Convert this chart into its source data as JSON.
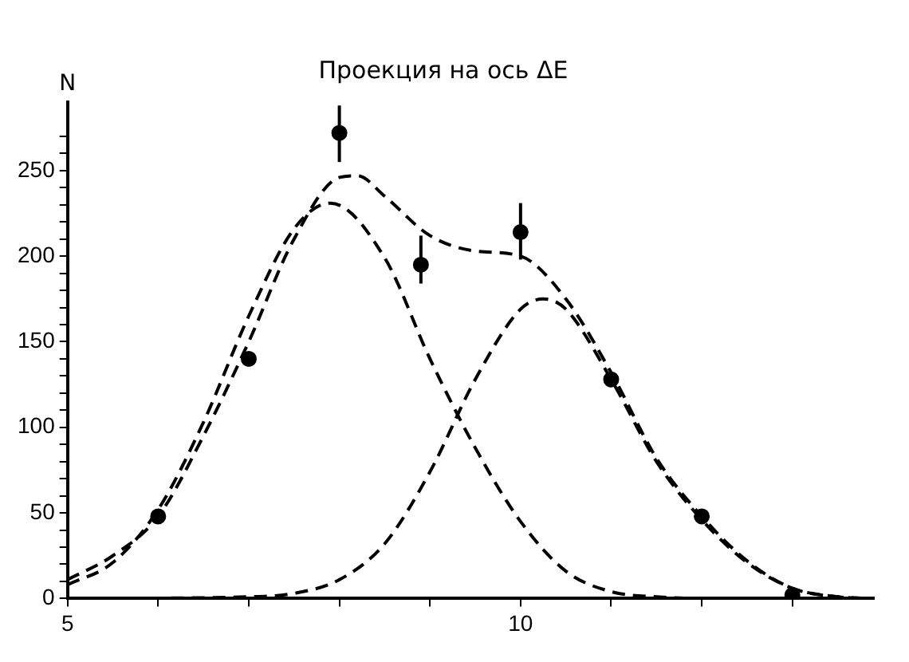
{
  "chart_data": {
    "type": "line",
    "title": "Проекция на ось ΔE",
    "ylabel": "N",
    "xlim": [
      5,
      13.9
    ],
    "ylim": [
      0,
      290
    ],
    "xticks": [
      5,
      {
        "value": 6,
        "label": null
      },
      {
        "value": 7,
        "label": null
      },
      {
        "value": 8,
        "label": null
      },
      {
        "value": 9,
        "label": null
      },
      10,
      {
        "value": 11,
        "label": null
      },
      {
        "value": 12,
        "label": null
      },
      {
        "value": 13,
        "label": null
      }
    ],
    "yticks": [
      0,
      {
        "value": 10,
        "label": null
      },
      {
        "value": 20,
        "label": null
      },
      {
        "value": 30,
        "label": null
      },
      {
        "value": 40,
        "label": null
      },
      50,
      {
        "value": 60,
        "label": null
      },
      {
        "value": 70,
        "label": null
      },
      {
        "value": 80,
        "label": null
      },
      {
        "value": 90,
        "label": null
      },
      100,
      {
        "value": 110,
        "label": null
      },
      {
        "value": 120,
        "label": null
      },
      {
        "value": 130,
        "label": null
      },
      {
        "value": 140,
        "label": null
      },
      150,
      {
        "value": 160,
        "label": null
      },
      {
        "value": 170,
        "label": null
      },
      {
        "value": 180,
        "label": null
      },
      {
        "value": 190,
        "label": null
      },
      200,
      {
        "value": 210,
        "label": null
      },
      {
        "value": 220,
        "label": null
      },
      {
        "value": 230,
        "label": null
      },
      {
        "value": 240,
        "label": null
      },
      250,
      {
        "value": 260,
        "label": null
      },
      {
        "value": 270,
        "label": null
      }
    ],
    "series": [
      {
        "type": "line",
        "color": "#000000",
        "line_style": "dashed",
        "marker": "none",
        "x": [
          5,
          5.5,
          6,
          6.5,
          7,
          7.5,
          8,
          8.2,
          8.5,
          9,
          9.5,
          10,
          10.5,
          11,
          11.5,
          12,
          12.5,
          13,
          13.5,
          13.9
        ],
        "values": [
          11,
          25,
          48,
          95,
          150,
          210,
          246,
          247,
          235,
          212,
          203,
          200,
          175,
          132,
          82,
          48,
          22,
          6,
          1,
          0
        ]
      },
      {
        "type": "line",
        "color": "#000000",
        "line_style": "dashed",
        "marker": "none",
        "x": [
          5,
          5.5,
          6,
          6.5,
          7,
          7.5,
          7.9,
          8.5,
          9,
          9.5,
          10,
          10.5,
          11,
          11.5,
          12,
          13.9
        ],
        "values": [
          8,
          21,
          52,
          103,
          165,
          216,
          231,
          199,
          140,
          88,
          45,
          16,
          4,
          1,
          0,
          0
        ]
      },
      {
        "type": "line",
        "color": "#000000",
        "line_style": "dashed",
        "marker": "none",
        "x": [
          5,
          7,
          7.5,
          8,
          8.5,
          9,
          9.5,
          10,
          10.25,
          10.5,
          11,
          11.5,
          12,
          12.5,
          13,
          13.5,
          13.9
        ],
        "values": [
          0,
          1,
          3,
          11,
          32,
          74,
          128,
          169,
          175,
          169,
          128,
          80,
          46,
          21,
          6,
          1,
          0
        ]
      },
      {
        "type": "scatter",
        "color": "#000000",
        "marker": "circle",
        "x": [
          6,
          7,
          8,
          8.9,
          10,
          11,
          12,
          13
        ],
        "values": [
          48,
          140,
          272,
          195,
          214,
          128,
          48,
          2
        ],
        "errors": [
          null,
          null,
          [
            255,
            288
          ],
          [
            184,
            212
          ],
          [
            198,
            231
          ],
          null,
          null,
          null
        ]
      }
    ]
  }
}
